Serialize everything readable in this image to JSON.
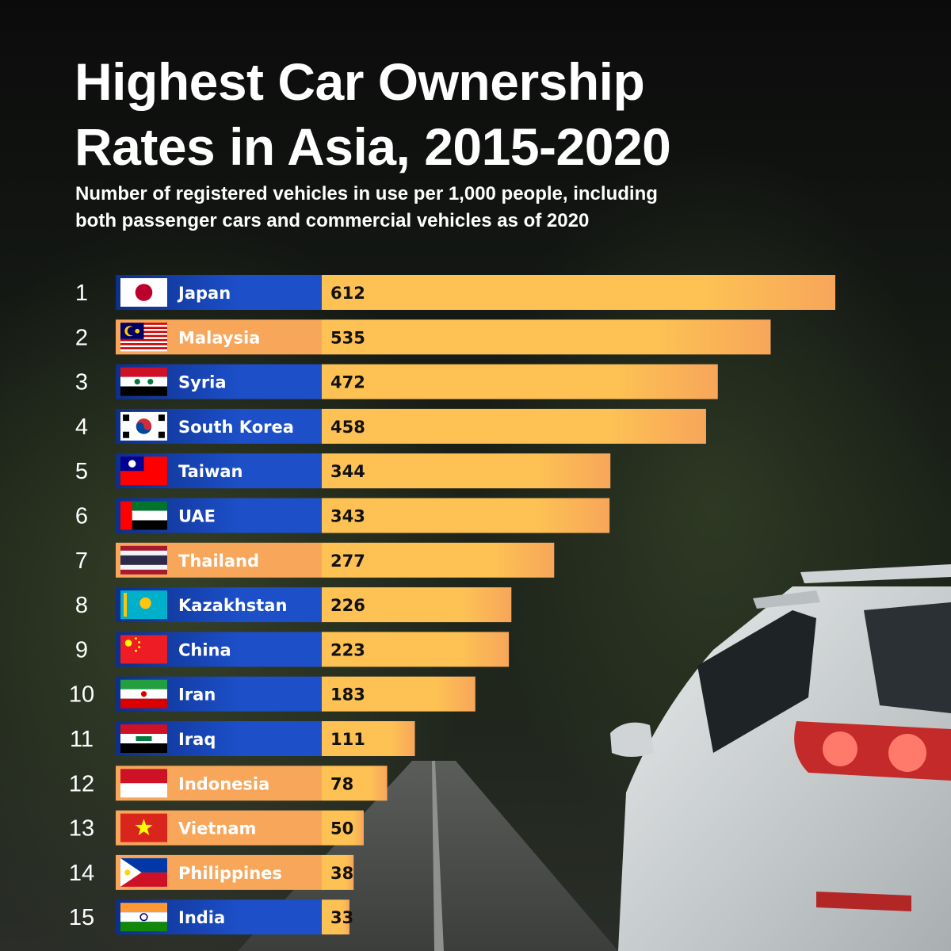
{
  "title_lines": [
    "Highest Car Ownership",
    "Rates in Asia, 2015-2020"
  ],
  "subtitle_lines": [
    "Number of registered vehicles in use per 1,000 people, including",
    "both passenger cars and commercial vehicles as of 2020"
  ],
  "colors": {
    "bar_start": "#f7a65a",
    "bar_end": "#fdc154",
    "label_blue": "#1c4fc8",
    "label_blue_dark": "#0d2f8a"
  },
  "chart_data": {
    "type": "bar",
    "orientation": "horizontal",
    "title": "Highest Car Ownership Rates in Asia, 2015-2020",
    "subtitle": "Number of registered vehicles in use per 1,000 people, including both passenger cars and commercial vehicles as of 2020",
    "xlim": [
      0,
      612
    ],
    "grid": false,
    "items": [
      {
        "rank": "1",
        "country": "Japan",
        "value": 612,
        "flag": "japan-flag",
        "label_style": "blue"
      },
      {
        "rank": "2",
        "country": "Malaysia",
        "value": 535,
        "flag": "malaysia-flag",
        "label_style": "orange"
      },
      {
        "rank": "3",
        "country": "Syria",
        "value": 472,
        "flag": "syria-flag",
        "label_style": "blue"
      },
      {
        "rank": "4",
        "country": "South Korea",
        "value": 458,
        "flag": "south-korea-flag",
        "label_style": "blue"
      },
      {
        "rank": "5",
        "country": "Taiwan",
        "value": 344,
        "flag": "taiwan-flag",
        "label_style": "blue"
      },
      {
        "rank": "6",
        "country": "UAE",
        "value": 343,
        "flag": "uae-flag",
        "label_style": "blue"
      },
      {
        "rank": "7",
        "country": "Thailand",
        "value": 277,
        "flag": "thailand-flag",
        "label_style": "orange"
      },
      {
        "rank": "8",
        "country": "Kazakhstan",
        "value": 226,
        "flag": "kazakhstan-flag",
        "label_style": "blue"
      },
      {
        "rank": "9",
        "country": "China",
        "value": 223,
        "flag": "china-flag",
        "label_style": "blue"
      },
      {
        "rank": "10",
        "country": "Iran",
        "value": 183,
        "flag": "iran-flag",
        "label_style": "blue"
      },
      {
        "rank": "11",
        "country": "Iraq",
        "value": 111,
        "flag": "iraq-flag",
        "label_style": "blue"
      },
      {
        "rank": "12",
        "country": "Indonesia",
        "value": 78,
        "flag": "indonesia-flag",
        "label_style": "orange"
      },
      {
        "rank": "13",
        "country": "Vietnam",
        "value": 50,
        "flag": "vietnam-flag",
        "label_style": "orange"
      },
      {
        "rank": "14",
        "country": "Philippines",
        "value": 38,
        "flag": "philippines-flag",
        "label_style": "orange"
      },
      {
        "rank": "15",
        "country": "India",
        "value": 33,
        "flag": "india-flag",
        "label_style": "blue"
      }
    ]
  }
}
